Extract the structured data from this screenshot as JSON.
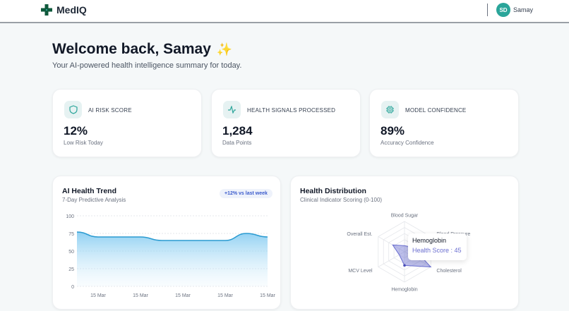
{
  "header": {
    "brand": "MedIQ",
    "avatar_initials": "SD",
    "user_name": "Samay"
  },
  "welcome": {
    "title": "Welcome back, Samay",
    "emoji": "✨",
    "subtitle": "Your AI-powered health intelligence summary for today."
  },
  "stats": [
    {
      "icon": "shield-icon",
      "label": "AI RISK SCORE",
      "value": "12%",
      "sub": "Low Risk Today"
    },
    {
      "icon": "activity-icon",
      "label": "HEALTH SIGNALS PROCESSED",
      "value": "1,284",
      "sub": "Data Points"
    },
    {
      "icon": "cpu-icon",
      "label": "MODEL CONFIDENCE",
      "value": "89%",
      "sub": "Accuracy Confidence"
    }
  ],
  "colors": {
    "brand": "#2aa59a",
    "line": "#2b9bd1",
    "radar": "#6b6fd0"
  },
  "chart_data": [
    {
      "type": "area",
      "title": "AI Health Trend",
      "subtitle": "7-Day Predictive Analysis",
      "badge": "+12% vs last week",
      "x": [
        "15 Mar",
        "15 Mar",
        "15 Mar",
        "15 Mar",
        "15 Mar",
        "15 Mar",
        "15 Mar",
        "15 Mar",
        "15 Mar",
        "15 Mar"
      ],
      "values": [
        77,
        70,
        70,
        70,
        65,
        65,
        65,
        65,
        75,
        70
      ],
      "yticks": [
        0,
        25,
        50,
        75,
        100
      ],
      "ylim": [
        0,
        100
      ],
      "grid": true
    },
    {
      "type": "radar",
      "title": "Health Distribution",
      "subtitle": "Clinical Indicator Scoring (0-100)",
      "categories": [
        "Blood Sugar",
        "Blood Pressure",
        "Cholesterol",
        "Hemoglobin",
        "MCV Level",
        "Overall Est."
      ],
      "values": [
        20,
        30,
        100,
        45,
        20,
        45
      ],
      "range": [
        0,
        100
      ],
      "tooltip": {
        "title": "Hemoglobin",
        "text": "Health Score : 45"
      }
    }
  ]
}
